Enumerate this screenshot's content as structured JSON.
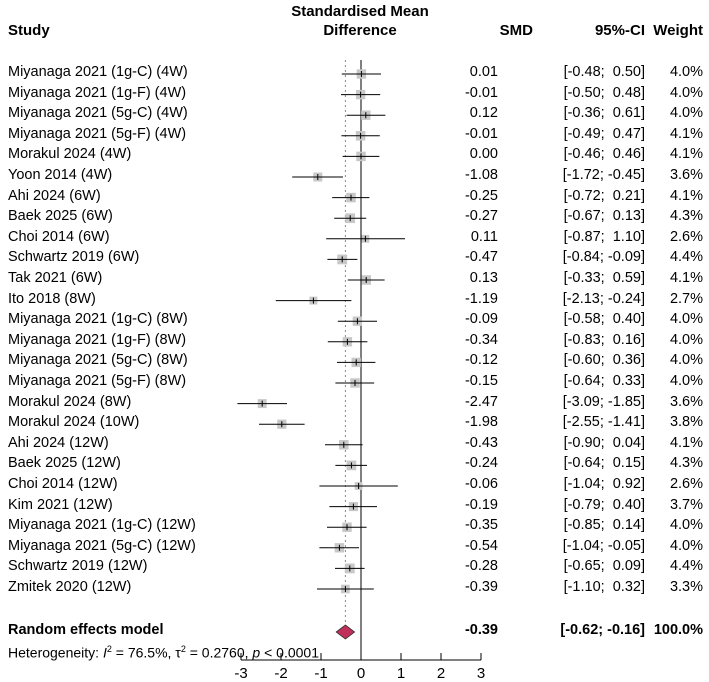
{
  "header": {
    "study": "Study",
    "effect_line1": "Standardised Mean",
    "effect_line2": "Difference",
    "smd": "SMD",
    "ci": "95%-CI",
    "weight": "Weight"
  },
  "studies": [
    {
      "label": "Miyanaga 2021 (1g-C) (4W)",
      "smd": 0.01,
      "lo": -0.48,
      "hi": 0.5,
      "smd_text": "0.01",
      "ci_text": "[-0.48;  0.50]",
      "weight_text": "4.0%",
      "weight": 4.0
    },
    {
      "label": "Miyanaga 2021 (1g-F) (4W)",
      "smd": -0.01,
      "lo": -0.5,
      "hi": 0.48,
      "smd_text": "-0.01",
      "ci_text": "[-0.50;  0.48]",
      "weight_text": "4.0%",
      "weight": 4.0
    },
    {
      "label": "Miyanaga 2021 (5g-C) (4W)",
      "smd": 0.12,
      "lo": -0.36,
      "hi": 0.61,
      "smd_text": "0.12",
      "ci_text": "[-0.36;  0.61]",
      "weight_text": "4.0%",
      "weight": 4.0
    },
    {
      "label": "Miyanaga 2021 (5g-F) (4W)",
      "smd": -0.01,
      "lo": -0.49,
      "hi": 0.47,
      "smd_text": "-0.01",
      "ci_text": "[-0.49;  0.47]",
      "weight_text": "4.1%",
      "weight": 4.1
    },
    {
      "label": "Morakul 2024 (4W)",
      "smd": 0.0,
      "lo": -0.46,
      "hi": 0.46,
      "smd_text": "0.00",
      "ci_text": "[-0.46;  0.46]",
      "weight_text": "4.1%",
      "weight": 4.1
    },
    {
      "label": "Yoon 2014 (4W)",
      "smd": -1.08,
      "lo": -1.72,
      "hi": -0.45,
      "smd_text": "-1.08",
      "ci_text": "[-1.72; -0.45]",
      "weight_text": "3.6%",
      "weight": 3.6
    },
    {
      "label": "Ahi 2024 (6W)",
      "smd": -0.25,
      "lo": -0.72,
      "hi": 0.21,
      "smd_text": "-0.25",
      "ci_text": "[-0.72;  0.21]",
      "weight_text": "4.1%",
      "weight": 4.1
    },
    {
      "label": "Baek 2025 (6W)",
      "smd": -0.27,
      "lo": -0.67,
      "hi": 0.13,
      "smd_text": "-0.27",
      "ci_text": "[-0.67;  0.13]",
      "weight_text": "4.3%",
      "weight": 4.3
    },
    {
      "label": "Choi 2014 (6W)",
      "smd": 0.11,
      "lo": -0.87,
      "hi": 1.1,
      "smd_text": "0.11",
      "ci_text": "[-0.87;  1.10]",
      "weight_text": "2.6%",
      "weight": 2.6
    },
    {
      "label": "Schwartz 2019 (6W)",
      "smd": -0.47,
      "lo": -0.84,
      "hi": -0.09,
      "smd_text": "-0.47",
      "ci_text": "[-0.84; -0.09]",
      "weight_text": "4.4%",
      "weight": 4.4
    },
    {
      "label": "Tak 2021 (6W)",
      "smd": 0.13,
      "lo": -0.33,
      "hi": 0.59,
      "smd_text": "0.13",
      "ci_text": "[-0.33;  0.59]",
      "weight_text": "4.1%",
      "weight": 4.1
    },
    {
      "label": "Ito 2018 (8W)",
      "smd": -1.19,
      "lo": -2.13,
      "hi": -0.24,
      "smd_text": "-1.19",
      "ci_text": "[-2.13; -0.24]",
      "weight_text": "2.7%",
      "weight": 2.7
    },
    {
      "label": "Miyanaga 2021 (1g-C) (8W)",
      "smd": -0.09,
      "lo": -0.58,
      "hi": 0.4,
      "smd_text": "-0.09",
      "ci_text": "[-0.58;  0.40]",
      "weight_text": "4.0%",
      "weight": 4.0
    },
    {
      "label": "Miyanaga 2021 (1g-F) (8W)",
      "smd": -0.34,
      "lo": -0.83,
      "hi": 0.16,
      "smd_text": "-0.34",
      "ci_text": "[-0.83;  0.16]",
      "weight_text": "4.0%",
      "weight": 4.0
    },
    {
      "label": "Miyanaga 2021 (5g-C) (8W)",
      "smd": -0.12,
      "lo": -0.6,
      "hi": 0.36,
      "smd_text": "-0.12",
      "ci_text": "[-0.60;  0.36]",
      "weight_text": "4.0%",
      "weight": 4.0
    },
    {
      "label": "Miyanaga 2021 (5g-F) (8W)",
      "smd": -0.15,
      "lo": -0.64,
      "hi": 0.33,
      "smd_text": "-0.15",
      "ci_text": "[-0.64;  0.33]",
      "weight_text": "4.0%",
      "weight": 4.0
    },
    {
      "label": "Morakul 2024 (8W)",
      "smd": -2.47,
      "lo": -3.09,
      "hi": -1.85,
      "smd_text": "-2.47",
      "ci_text": "[-3.09; -1.85]",
      "weight_text": "3.6%",
      "weight": 3.6
    },
    {
      "label": "Morakul 2024 (10W)",
      "smd": -1.98,
      "lo": -2.55,
      "hi": -1.41,
      "smd_text": "-1.98",
      "ci_text": "[-2.55; -1.41]",
      "weight_text": "3.8%",
      "weight": 3.8
    },
    {
      "label": "Ahi 2024 (12W)",
      "smd": -0.43,
      "lo": -0.9,
      "hi": 0.04,
      "smd_text": "-0.43",
      "ci_text": "[-0.90;  0.04]",
      "weight_text": "4.1%",
      "weight": 4.1
    },
    {
      "label": "Baek 2025 (12W)",
      "smd": -0.24,
      "lo": -0.64,
      "hi": 0.15,
      "smd_text": "-0.24",
      "ci_text": "[-0.64;  0.15]",
      "weight_text": "4.3%",
      "weight": 4.3
    },
    {
      "label": "Choi 2014 (12W)",
      "smd": -0.06,
      "lo": -1.04,
      "hi": 0.92,
      "smd_text": "-0.06",
      "ci_text": "[-1.04;  0.92]",
      "weight_text": "2.6%",
      "weight": 2.6
    },
    {
      "label": "Kim 2021 (12W)",
      "smd": -0.19,
      "lo": -0.79,
      "hi": 0.4,
      "smd_text": "-0.19",
      "ci_text": "[-0.79;  0.40]",
      "weight_text": "3.7%",
      "weight": 3.7
    },
    {
      "label": "Miyanaga 2021 (1g-C) (12W)",
      "smd": -0.35,
      "lo": -0.85,
      "hi": 0.14,
      "smd_text": "-0.35",
      "ci_text": "[-0.85;  0.14]",
      "weight_text": "4.0%",
      "weight": 4.0
    },
    {
      "label": "Miyanaga 2021 (5g-C) (12W)",
      "smd": -0.54,
      "lo": -1.04,
      "hi": -0.05,
      "smd_text": "-0.54",
      "ci_text": "[-1.04; -0.05]",
      "weight_text": "4.0%",
      "weight": 4.0
    },
    {
      "label": "Schwartz 2019 (12W)",
      "smd": -0.28,
      "lo": -0.65,
      "hi": 0.09,
      "smd_text": "-0.28",
      "ci_text": "[-0.65;  0.09]",
      "weight_text": "4.4%",
      "weight": 4.4
    },
    {
      "label": "Zmitek 2020 (12W)",
      "smd": -0.39,
      "lo": -1.1,
      "hi": 0.32,
      "smd_text": "-0.39",
      "ci_text": "[-1.10;  0.32]",
      "weight_text": "3.3%",
      "weight": 3.3
    }
  ],
  "pooled": {
    "label": "Random effects model",
    "smd": -0.39,
    "lo": -0.62,
    "hi": -0.16,
    "smd_text": "-0.39",
    "ci_text": "[-0.62; -0.16]",
    "weight_text": "100.0%"
  },
  "heterogeneity": {
    "prefix": "Heterogeneity: ",
    "i2_symbol": "I",
    "i2_sup": "2",
    "i2_value": " = 76.5%, ",
    "tau2_symbol": "τ",
    "tau2_sup": "2",
    "tau2_value": " = 0.2760, ",
    "p_symbol": "p",
    "p_value": " < 0.0001"
  },
  "colors": {
    "square": "#c8c8c8",
    "diamond": "#c0305a",
    "dashed_line": "#888888"
  },
  "chart_data": {
    "type": "forest",
    "x_ticks": [
      -3,
      -2,
      -1,
      0,
      1,
      2,
      3
    ],
    "xlim": [
      -3,
      3
    ],
    "null_line": 0,
    "pooled_estimate": -0.39
  }
}
